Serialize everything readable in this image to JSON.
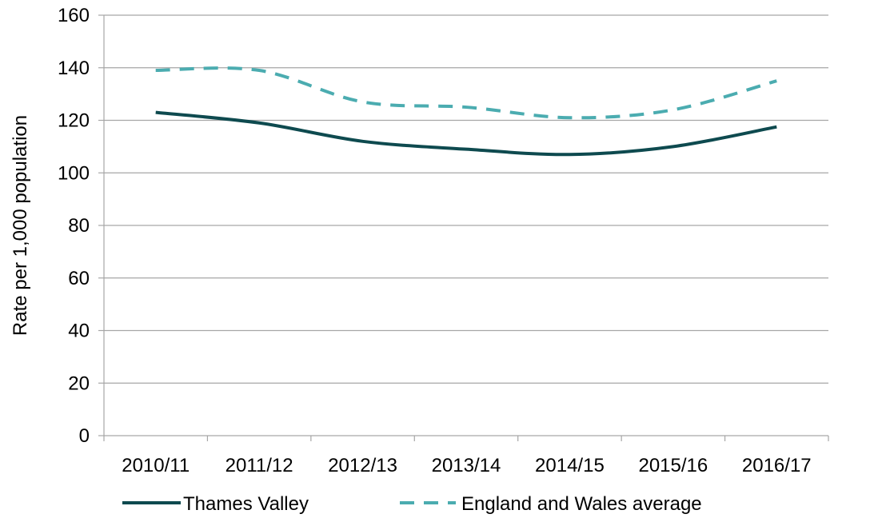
{
  "chart_data": {
    "type": "line",
    "categories": [
      "2010/11",
      "2011/12",
      "2012/13",
      "2013/14",
      "2014/15",
      "2015/16",
      "2016/17"
    ],
    "series": [
      {
        "name": "Thames Valley",
        "values": [
          123,
          119,
          112,
          109,
          107,
          110,
          117.5
        ],
        "color": "#0e4a4f",
        "dash": "solid"
      },
      {
        "name": "England and Wales average",
        "values": [
          139,
          139,
          127,
          125,
          121,
          124,
          135
        ],
        "color": "#4bacb0",
        "dash": "dashed"
      }
    ],
    "ylabel": "Rate per 1,000 population",
    "ylim": [
      0,
      160
    ],
    "yticks": [
      0,
      20,
      40,
      60,
      80,
      100,
      120,
      140,
      160
    ],
    "grid": true,
    "legend": "bottom"
  }
}
